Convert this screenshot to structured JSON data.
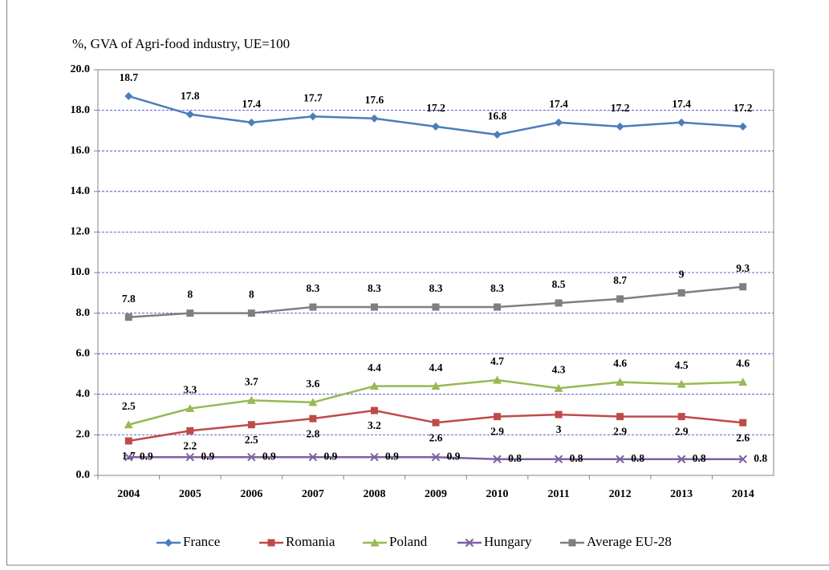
{
  "chart_data": {
    "type": "line",
    "y_axis_label": "%, GVA of Agri-food industry, UE=100",
    "categories": [
      "2004",
      "2005",
      "2006",
      "2007",
      "2008",
      "2009",
      "2010",
      "2011",
      "2012",
      "2013",
      "2014"
    ],
    "series": [
      {
        "name": "France",
        "color": "#4a7ebb",
        "marker": "diamond",
        "values": [
          18.7,
          17.8,
          17.4,
          17.7,
          17.6,
          17.2,
          16.8,
          17.4,
          17.2,
          17.4,
          17.2
        ]
      },
      {
        "name": "Romania",
        "color": "#be4b48",
        "marker": "square",
        "values": [
          1.7,
          2.2,
          2.5,
          2.8,
          3.2,
          2.6,
          2.9,
          3.0,
          2.9,
          2.9,
          2.6
        ]
      },
      {
        "name": "Poland",
        "color": "#98b954",
        "marker": "triangle",
        "values": [
          2.5,
          3.3,
          3.7,
          3.6,
          4.4,
          4.4,
          4.7,
          4.3,
          4.6,
          4.5,
          4.6
        ]
      },
      {
        "name": "Hungary",
        "color": "#7d60a0",
        "marker": "x",
        "values": [
          0.9,
          0.9,
          0.9,
          0.9,
          0.9,
          0.9,
          0.8,
          0.8,
          0.8,
          0.8,
          0.8
        ]
      },
      {
        "name": "Average EU-28",
        "color": "#7f7f7f",
        "marker": "square",
        "values": [
          7.8,
          8.0,
          8.0,
          8.3,
          8.3,
          8.3,
          8.3,
          8.5,
          8.7,
          9.0,
          9.3
        ]
      }
    ],
    "ylim": [
      0,
      20
    ],
    "yticks": [
      {
        "value": 0,
        "label": "0.0"
      },
      {
        "value": 2,
        "label": "2.0"
      },
      {
        "value": 4,
        "label": "4.0"
      },
      {
        "value": 6,
        "label": "6.0"
      },
      {
        "value": 8,
        "label": "8.0"
      },
      {
        "value": 10,
        "label": "10.0"
      },
      {
        "value": 12,
        "label": "12.0"
      },
      {
        "value": 14,
        "label": "14.0"
      },
      {
        "value": 16,
        "label": "16.0"
      },
      {
        "value": 18,
        "label": "18.0"
      },
      {
        "value": 20,
        "label": "20.0"
      }
    ],
    "grid": true,
    "legend": "bottom"
  }
}
